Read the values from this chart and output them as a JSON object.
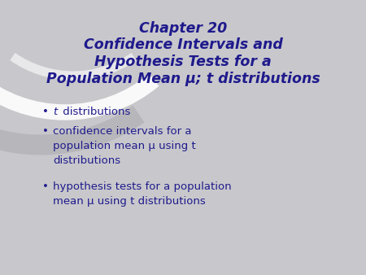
{
  "title_line1": "Chapter 20",
  "title_line2": "Confidence Intervals and",
  "title_line3": "Hypothesis Tests for a",
  "title_line4": "Population Mean μ; t distributions",
  "bullet1_part1": "t",
  "bullet1_part2": " distributions",
  "bullet2_line1": "confidence intervals for a",
  "bullet2_line2": "population mean μ using t",
  "bullet2_line3": "distributions",
  "bullet3_line1": "hypothesis tests for a population",
  "bullet3_line2": "mean μ using t distributions",
  "title_color": "#1f1a8c",
  "bullet_color": "#1f1a8c",
  "bg_color": "#c8c8cc",
  "arc_color_white": "#e8e8ea",
  "arc_color_dark": "#b0b0b4",
  "title_fontsize": 12.5,
  "bullet_fontsize": 9.5
}
